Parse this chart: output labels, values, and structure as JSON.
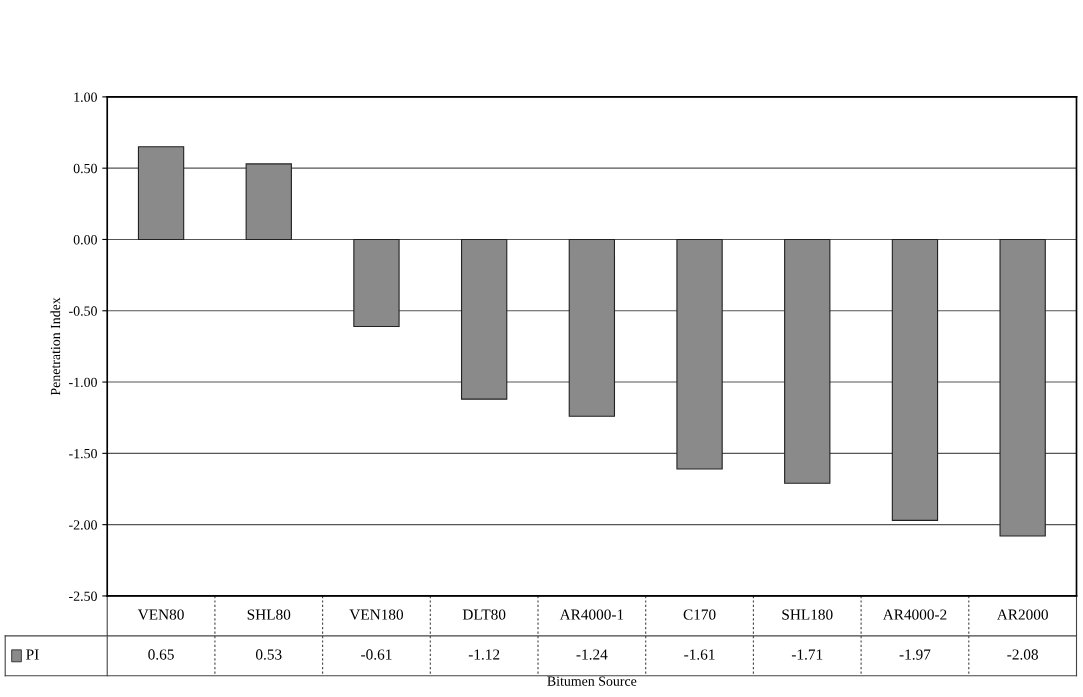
{
  "chart_data": {
    "type": "bar",
    "xlabel": "Bitumen Source",
    "ylabel": "Penetration Index",
    "categories": [
      "VEN80",
      "SHL80",
      "VEN180",
      "DLT80",
      "AR4000-1",
      "C170",
      "SHL180",
      "AR4000-2",
      "AR2000"
    ],
    "series": [
      {
        "name": "PI",
        "color": "#8a8a8a",
        "values": [
          0.65,
          0.53,
          -0.61,
          -1.12,
          -1.24,
          -1.61,
          -1.71,
          -1.97,
          -2.08
        ]
      }
    ],
    "ylim": [
      -2.5,
      1.0
    ],
    "yticks": [
      {
        "value": -2.5,
        "label": "-2.50"
      },
      {
        "value": -2.0,
        "label": "-2.00"
      },
      {
        "value": -1.5,
        "label": "-1.50"
      },
      {
        "value": -1.0,
        "label": "-1.00"
      },
      {
        "value": -0.5,
        "label": "-0.50"
      },
      {
        "value": 0.0,
        "label": "0.00"
      },
      {
        "value": 0.5,
        "label": "0.50"
      },
      {
        "value": 1.0,
        "label": "1.00"
      }
    ],
    "grid": "y",
    "data_labels": true
  }
}
